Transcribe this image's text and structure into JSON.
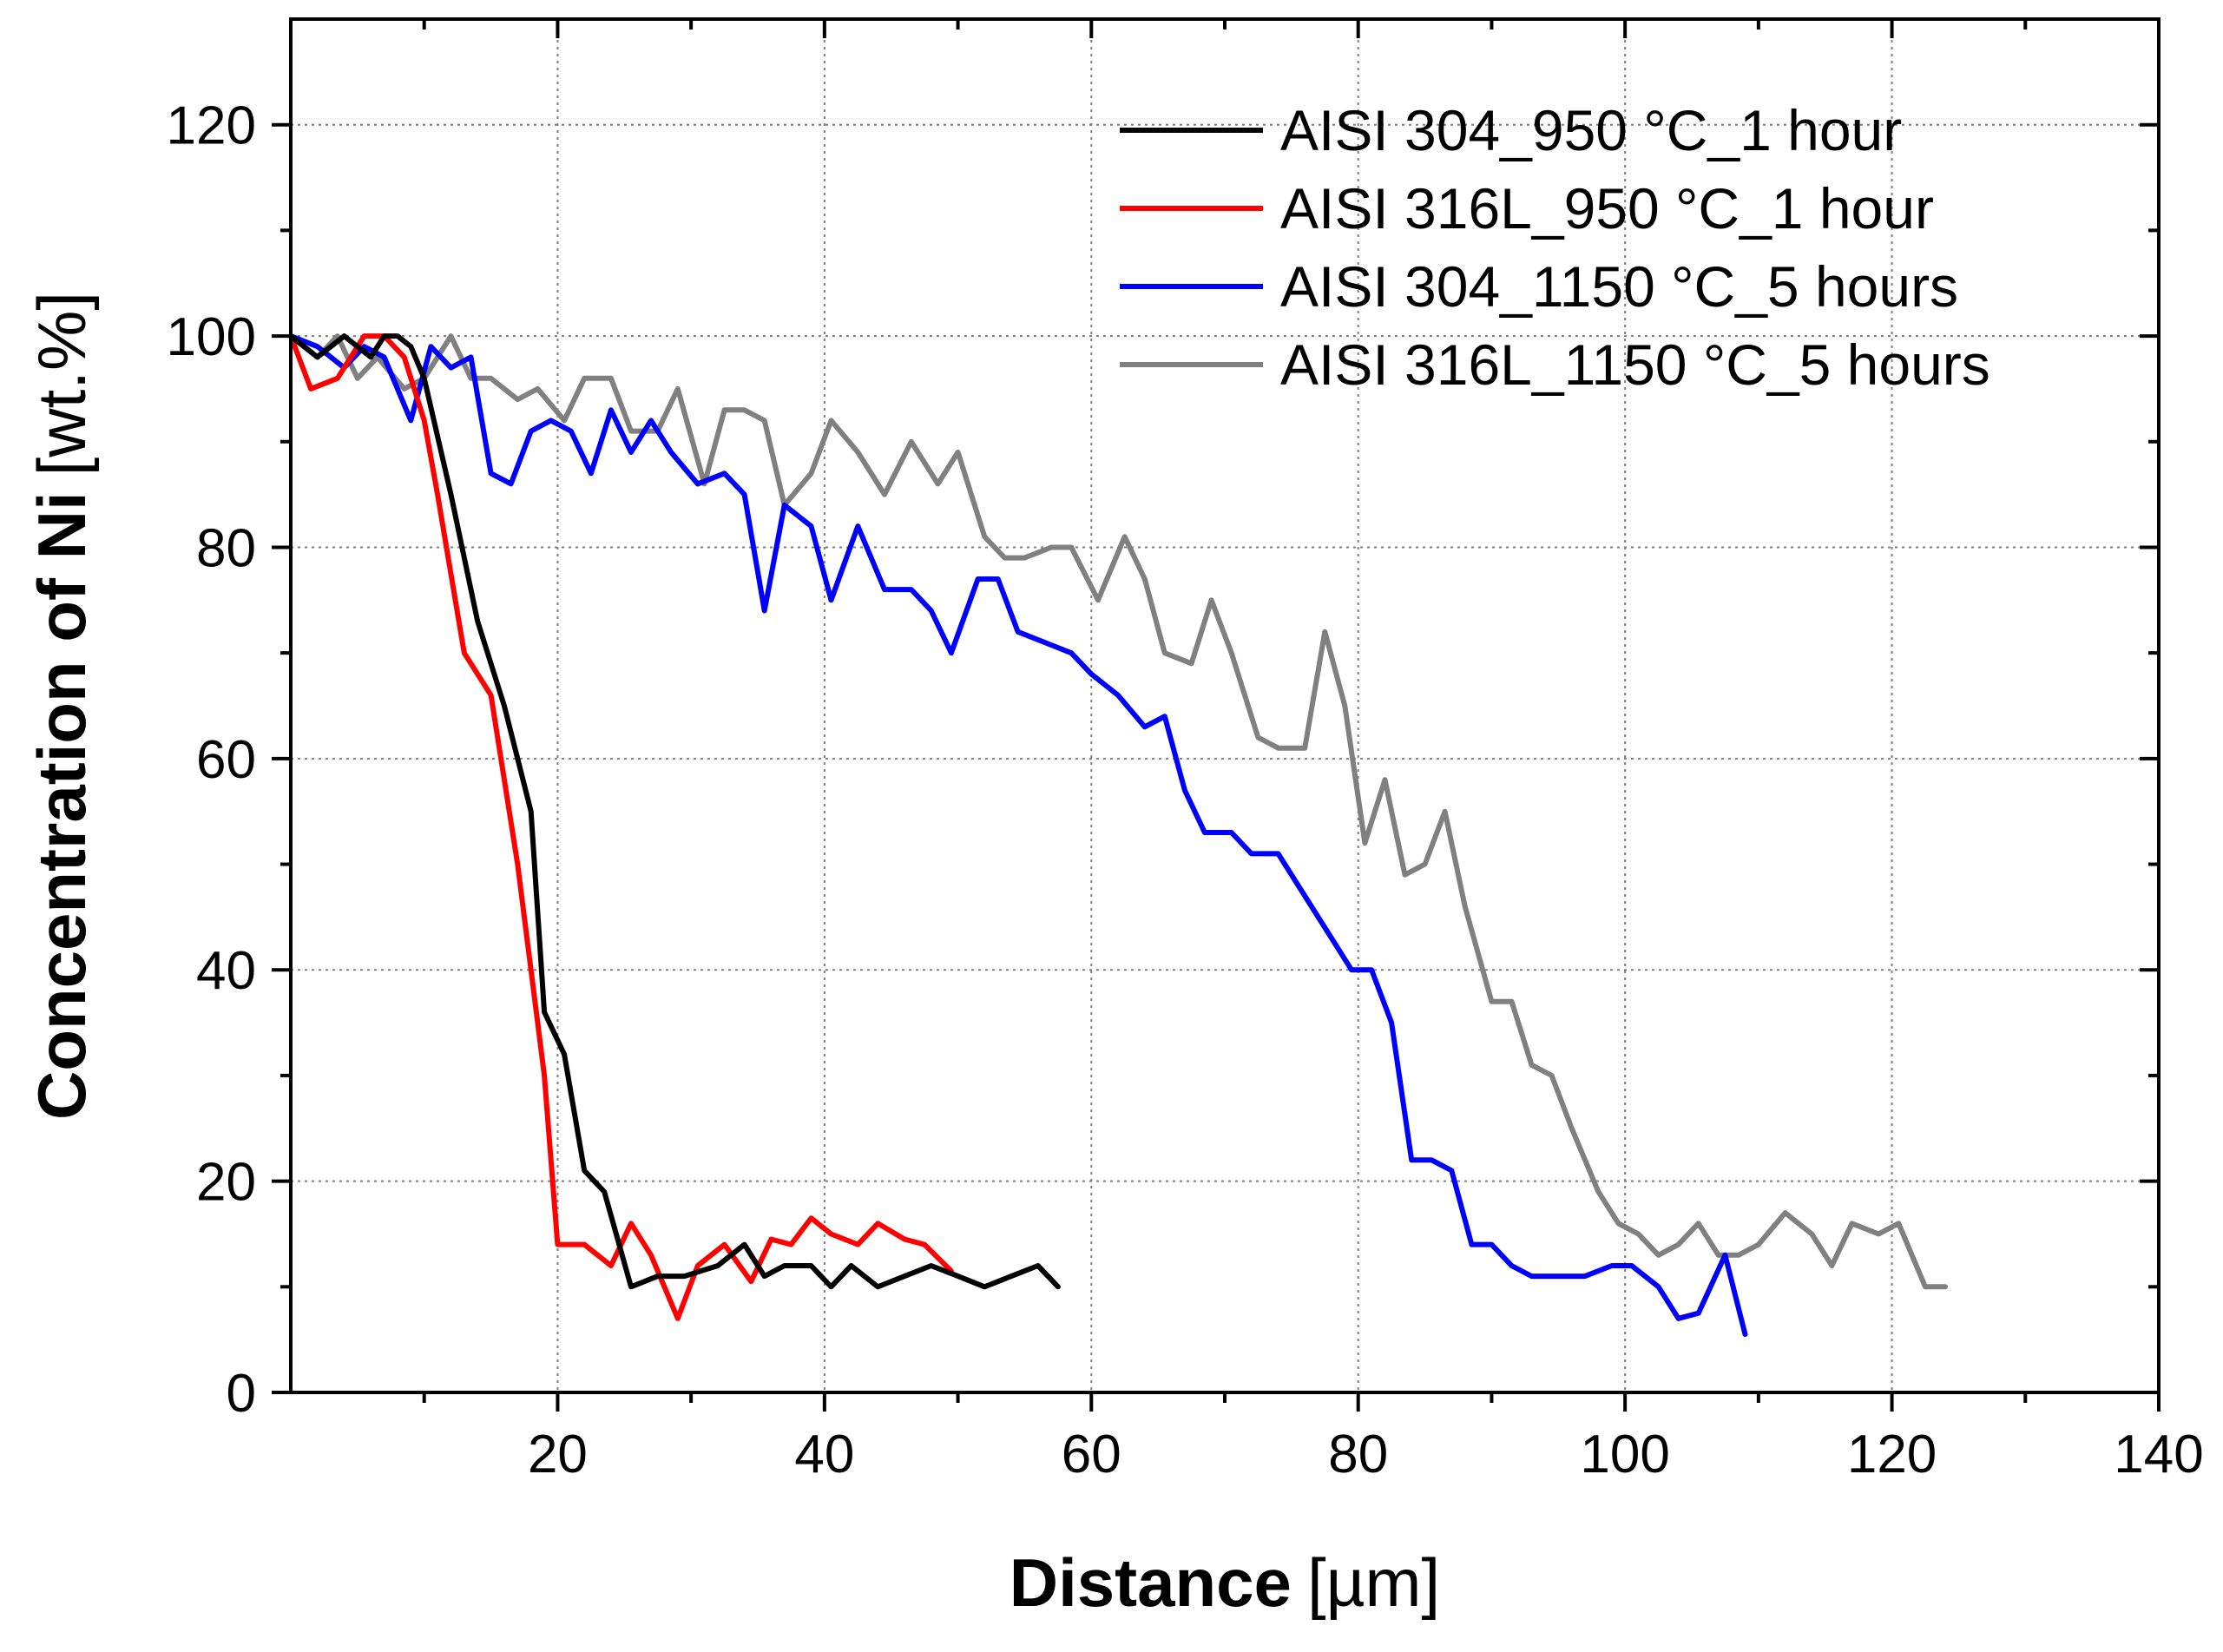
{
  "colors": {
    "series_304_950": "#000000",
    "series_316L_950": "#ff0000",
    "series_304_1150": "#0000ff",
    "series_316L_1150": "#808080",
    "grid": "#7f7f7f",
    "axis": "#000000"
  },
  "chart_data": {
    "type": "line",
    "title": "",
    "xlabel_bold": "Distance",
    "xlabel_unit": "[µm]",
    "ylabel_bold": "Concentration of Ni",
    "ylabel_unit": "[wt.%]",
    "xlim": [
      0,
      140
    ],
    "ylim": [
      0,
      130
    ],
    "xticks": [
      20,
      40,
      60,
      80,
      100,
      120,
      140
    ],
    "yticks": [
      0,
      20,
      40,
      60,
      80,
      100,
      120
    ],
    "xtick_labels": [
      "20",
      "40",
      "60",
      "80",
      "100",
      "120",
      "140"
    ],
    "ytick_labels": [
      "0",
      "20",
      "40",
      "60",
      "80",
      "100",
      "120"
    ],
    "grid": true,
    "legend_position": "top-right",
    "series": [
      {
        "name": "AISI 304_950 °C_1 hour",
        "color": "#000000",
        "x": [
          0,
          2,
          4,
          6,
          7,
          8,
          9,
          10,
          12,
          14,
          16,
          18,
          19,
          20.5,
          22,
          23.5,
          25.5,
          27.5,
          29.5,
          32,
          34,
          35.5,
          37,
          39,
          40.5,
          42,
          44,
          46,
          48,
          50,
          52,
          54,
          56,
          57.5
        ],
        "y": [
          100,
          98,
          100,
          98,
          100,
          100,
          99,
          96,
          85,
          73,
          65,
          55,
          36,
          32,
          21,
          19,
          10,
          11,
          11,
          12,
          14,
          11,
          12,
          12,
          10,
          12,
          10,
          11,
          12,
          11,
          10,
          11,
          12,
          10
        ]
      },
      {
        "name": "AISI 316L_950 °C_1 hour",
        "color": "#ff0000",
        "x": [
          0,
          1.5,
          3.5,
          5.5,
          7,
          8.5,
          10,
          11,
          13,
          15,
          17,
          19,
          20,
          22,
          24,
          25.5,
          27,
          29,
          30.5,
          32.5,
          34.5,
          36,
          37.5,
          39,
          40.5,
          42.5,
          44,
          46,
          47.5,
          49.5
        ],
        "y": [
          100,
          95,
          96,
          100,
          100,
          98,
          92,
          85,
          70,
          66,
          50,
          30,
          14,
          14,
          12,
          16,
          13,
          7,
          12,
          14,
          10.5,
          14.5,
          14,
          16.5,
          15,
          14,
          16,
          14.5,
          14,
          11.5
        ]
      },
      {
        "name": "AISI 304_1150 °C_5 hours",
        "color": "#0000ff",
        "x": [
          0,
          2,
          4,
          5.5,
          7,
          9,
          10.5,
          12,
          13.5,
          15,
          16.5,
          18,
          19.5,
          21,
          22.5,
          24,
          25.5,
          27,
          28.5,
          30.5,
          32.5,
          34,
          35.5,
          37,
          39,
          40.5,
          42.5,
          44.5,
          46.5,
          48,
          49.5,
          51.5,
          53,
          54.5,
          56.5,
          58.5,
          60,
          62,
          64,
          65.5,
          67,
          68.5,
          70.5,
          72,
          74,
          76,
          78,
          79.5,
          81,
          82.5,
          84,
          85.5,
          87,
          88.5,
          90,
          91.5,
          93,
          95,
          97,
          99,
          100.5,
          102.5,
          104,
          105.5,
          107.5,
          109
        ],
        "y": [
          100,
          99,
          97,
          99,
          98,
          92,
          99,
          97,
          98,
          87,
          86,
          91,
          92,
          91,
          87,
          93,
          89,
          92,
          89,
          86,
          87,
          85,
          74,
          84,
          82,
          75,
          82,
          76,
          76,
          74,
          70,
          77,
          77,
          72,
          71,
          70,
          68,
          66,
          63,
          64,
          57,
          53,
          53,
          51,
          51,
          47,
          43,
          40,
          40,
          35,
          22,
          22,
          21,
          14,
          14,
          12,
          11,
          11,
          11,
          12,
          12,
          10,
          7,
          7.5,
          13,
          5.5
        ]
      },
      {
        "name": "AISI 316L_1150 °C_5 hours",
        "color": "#808080",
        "x": [
          0,
          2,
          3.5,
          5,
          6.5,
          8.5,
          10,
          12,
          13.5,
          15,
          17,
          18.5,
          20.5,
          22,
          24,
          25.5,
          27.5,
          29,
          31,
          32.5,
          34,
          35.5,
          37,
          39,
          40.5,
          42.5,
          44.5,
          46.5,
          48.5,
          50,
          52,
          53.5,
          55,
          57,
          58.5,
          60.5,
          62.5,
          64,
          65.5,
          67.5,
          69,
          70.5,
          72.5,
          74,
          76,
          77.5,
          79,
          80.5,
          82,
          83.5,
          85,
          86.5,
          88,
          90,
          91.5,
          93,
          94.5,
          96,
          98,
          99.5,
          101,
          102.5,
          104,
          105.5,
          107,
          108.5,
          110,
          112,
          114,
          115.5,
          117,
          119,
          120.5,
          122.5,
          124
        ],
        "y": [
          100,
          98,
          100,
          96,
          98,
          95,
          96,
          100,
          96,
          96,
          94,
          95,
          92,
          96,
          96,
          91,
          91,
          95,
          86,
          93,
          93,
          92,
          84,
          87,
          92,
          89,
          85,
          90,
          86,
          89,
          81,
          79,
          79,
          80,
          80,
          75,
          81,
          77,
          70,
          69,
          75,
          70,
          62,
          61,
          61,
          72,
          65,
          52,
          58,
          49,
          50,
          55,
          46,
          37,
          37,
          31,
          30,
          25,
          19,
          16,
          15,
          13,
          14,
          16,
          13,
          13,
          14,
          17,
          15,
          12,
          16,
          15,
          16,
          10,
          10
        ]
      }
    ]
  }
}
